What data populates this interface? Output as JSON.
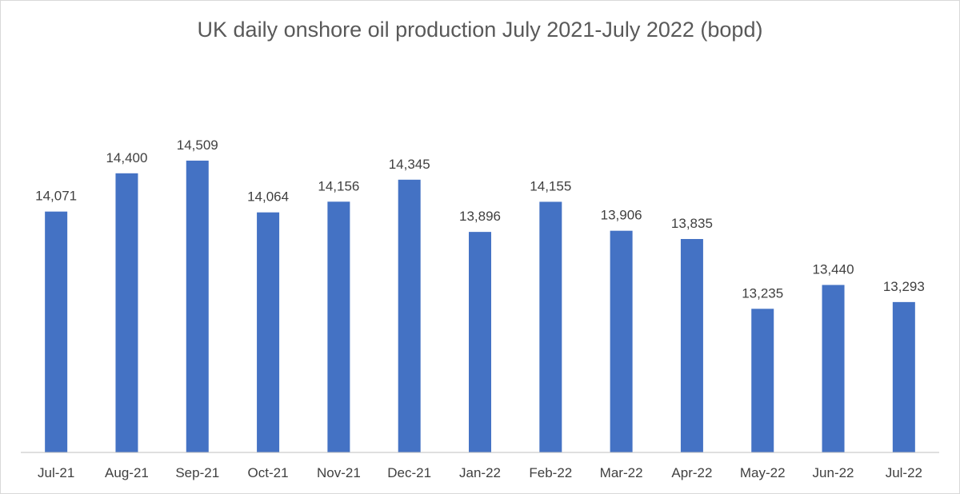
{
  "chart_data": {
    "type": "bar",
    "title": "UK daily onshore oil production  July 2021-July 2022 (bopd)",
    "xlabel": "",
    "ylabel": "",
    "categories": [
      "Jul-21",
      "Aug-21",
      "Sep-21",
      "Oct-21",
      "Nov-21",
      "Dec-21",
      "Jan-22",
      "Feb-22",
      "Mar-22",
      "Apr-22",
      "May-22",
      "Jun-22",
      "Jul-22"
    ],
    "values": [
      14071,
      14400,
      14509,
      14064,
      14156,
      14345,
      13896,
      14155,
      13906,
      13835,
      13235,
      13440,
      13293
    ],
    "data_labels": [
      "14,071",
      "14,400",
      "14,509",
      "14,064",
      "14,156",
      "14,345",
      "13,896",
      "14,155",
      "13,906",
      "13,835",
      "13,235",
      "13,440",
      "13,293"
    ],
    "ylim": [
      12000,
      14800
    ],
    "grid": false,
    "legend": "none",
    "bar_color": "#4472c4"
  }
}
